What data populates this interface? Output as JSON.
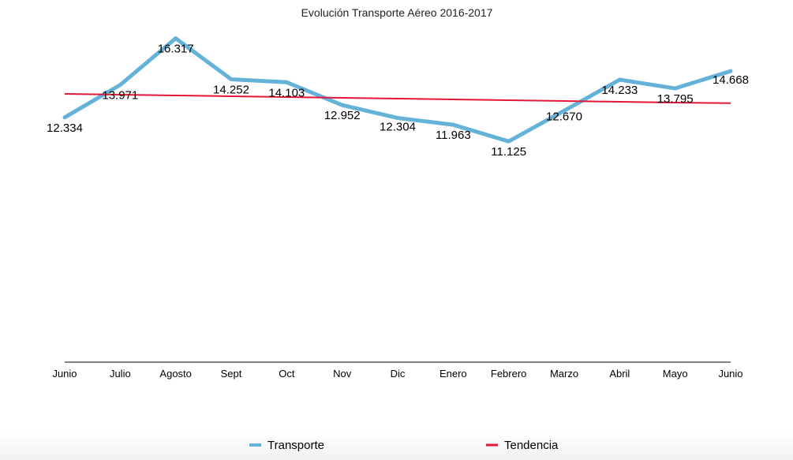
{
  "chart_data": {
    "type": "line",
    "title": "Evolución Transporte Aéreo 2016-2017",
    "xlabel": "",
    "ylabel": "",
    "categories": [
      "Junio",
      "Julio",
      "Agosto",
      "Sept",
      "Oct",
      "Nov",
      "Dic",
      "Enero",
      "Febrero",
      "Marzo",
      "Abril",
      "Mayo",
      "Junio"
    ],
    "ylim": [
      0,
      16.5
    ],
    "grid": false,
    "legend_position": "bottom",
    "series": [
      {
        "name": "Transporte",
        "color": "#64b2d8",
        "values": [
          12.334,
          13.971,
          16.317,
          14.252,
          14.103,
          12.952,
          12.304,
          11.963,
          11.125,
          12.67,
          14.233,
          13.795,
          14.668
        ],
        "labels": [
          "12.334",
          "13.971",
          "16.317",
          "14.252",
          "14.103",
          "12.952",
          "12.304",
          "11.963",
          "11.125",
          "12.670",
          "14.233",
          "13.795",
          "14.668"
        ]
      },
      {
        "name": "Tendencia",
        "color": "#e3163a",
        "values": [
          13.52,
          13.48,
          13.44,
          13.4,
          13.36,
          13.32,
          13.28,
          13.24,
          13.2,
          13.16,
          13.12,
          13.08,
          13.05
        ]
      }
    ]
  }
}
